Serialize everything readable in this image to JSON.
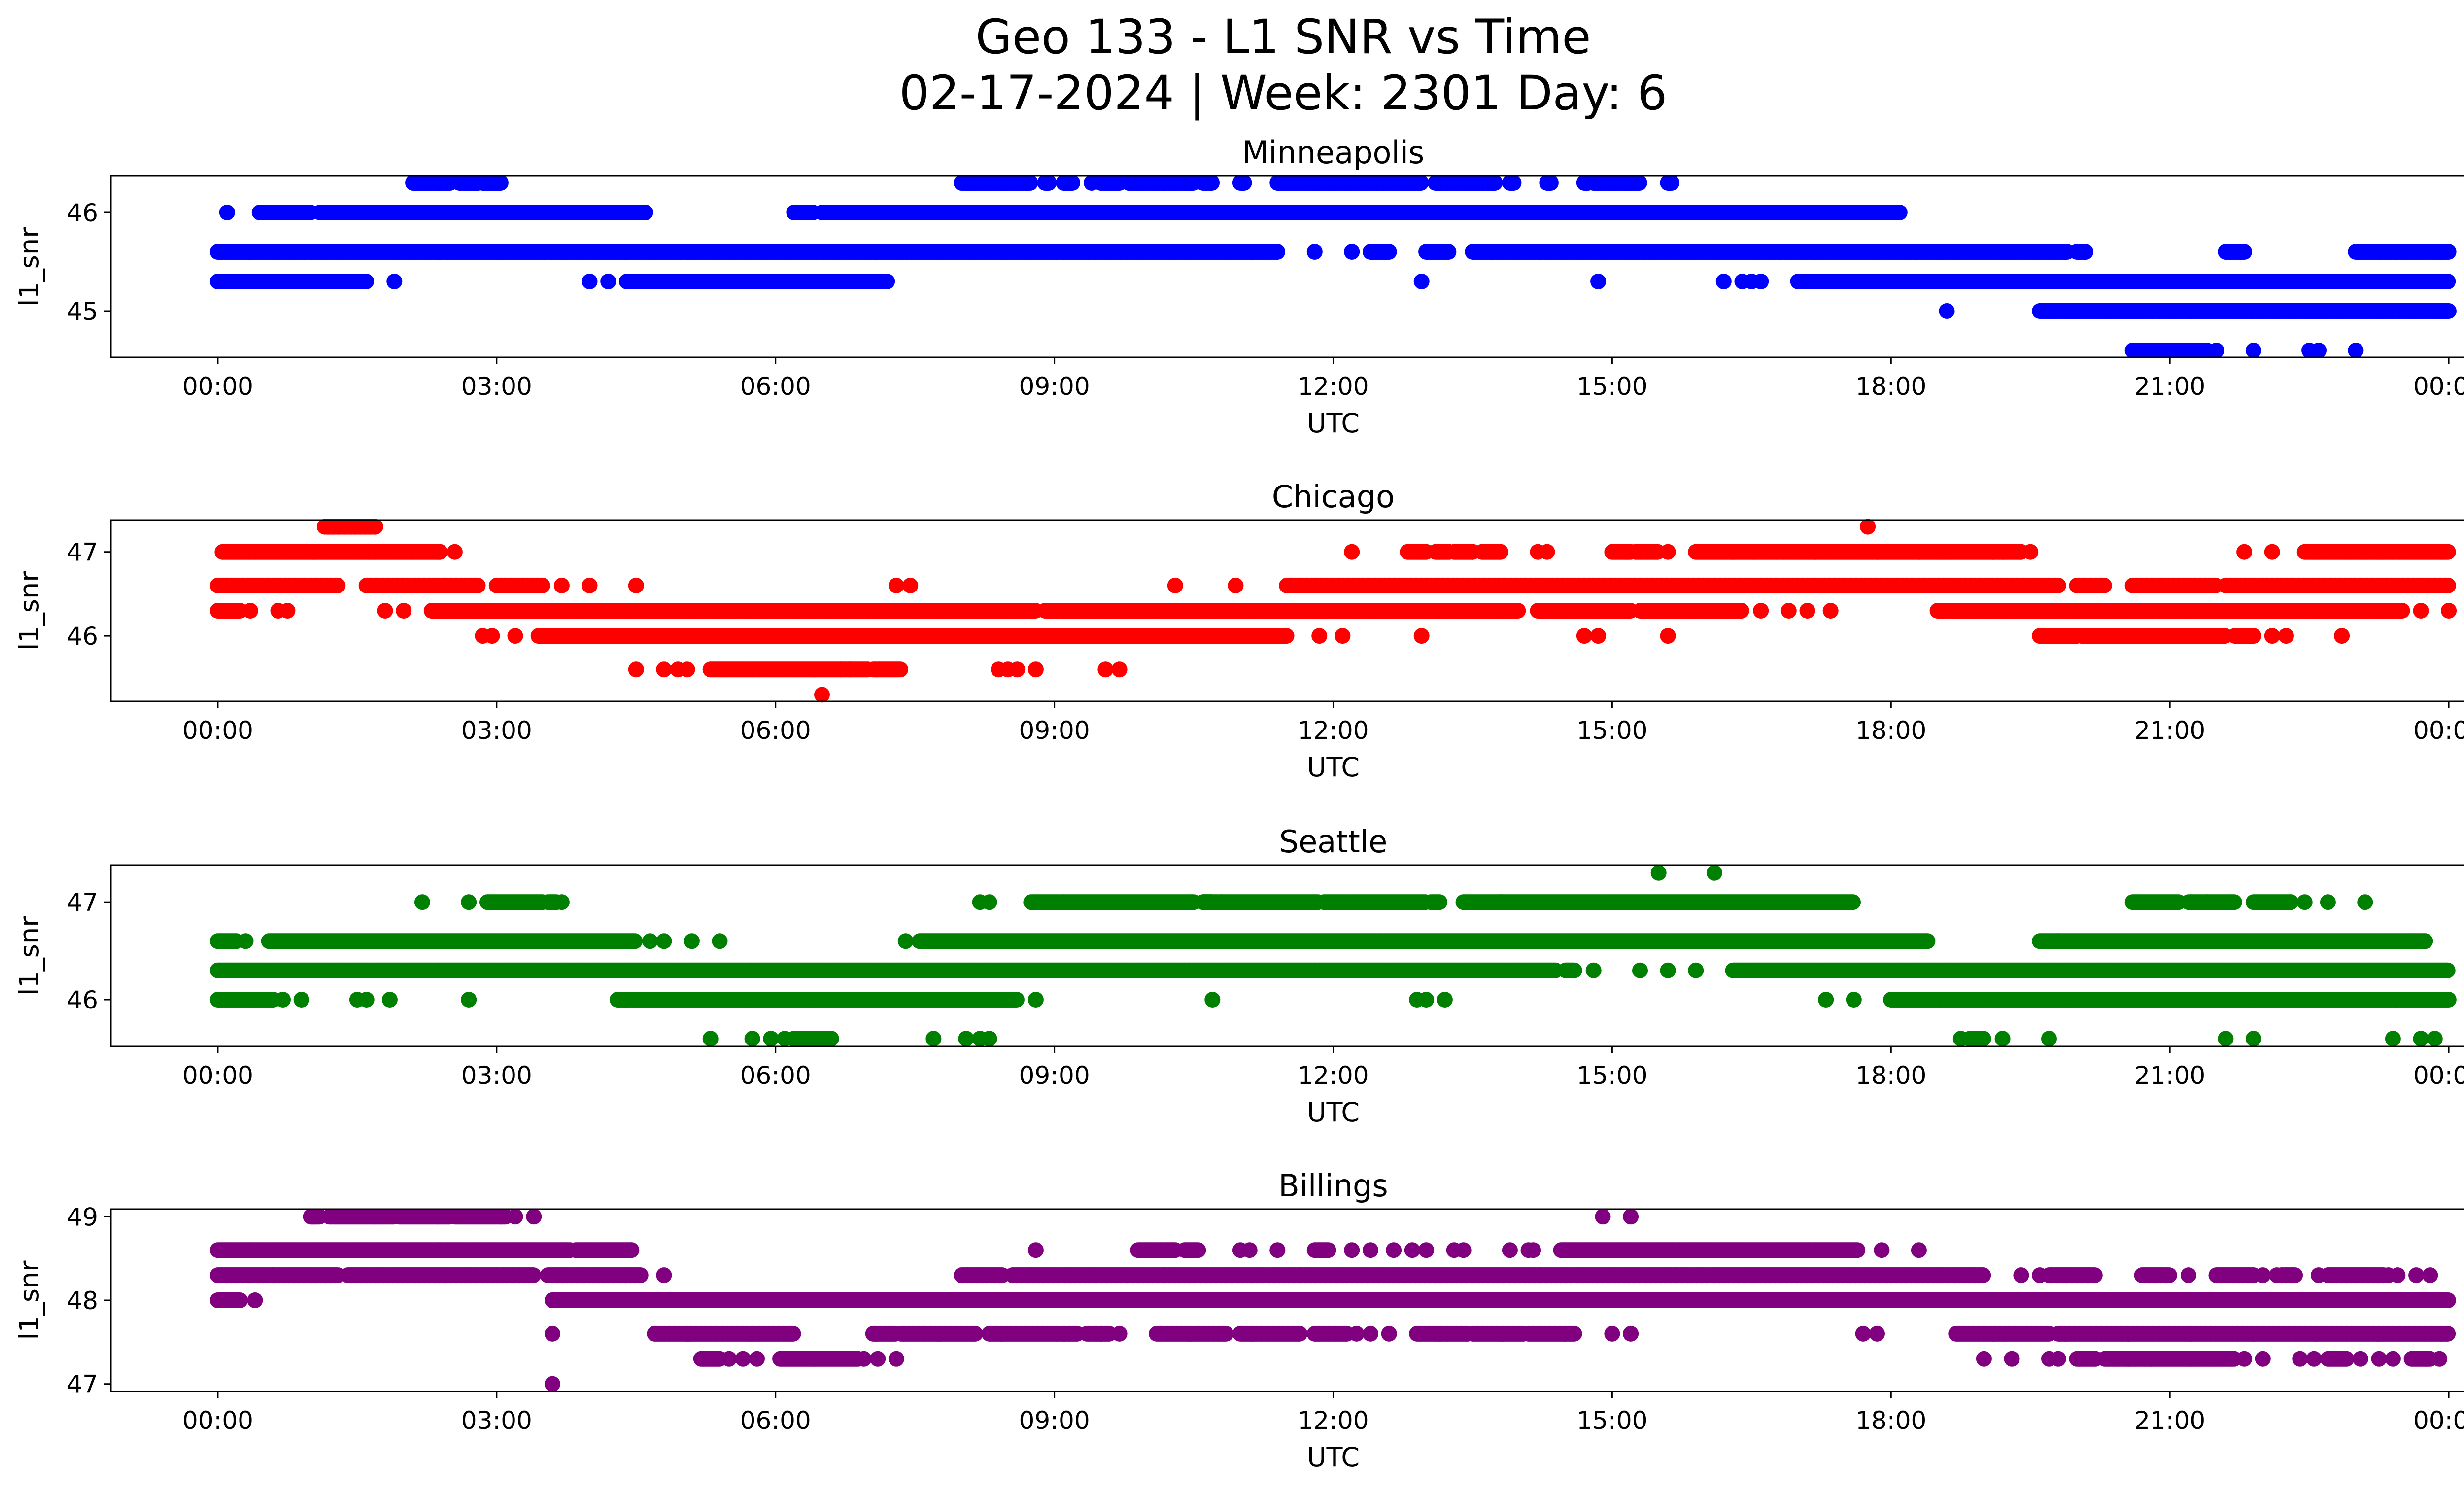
{
  "figure": {
    "title_line1": "Geo 133 - L1 SNR vs Time",
    "title_line2": "02-17-2024 | Week: 2301 Day: 6"
  },
  "chart_data": [
    {
      "type": "scatter",
      "title": "Minneapolis",
      "xlabel": "UTC",
      "ylabel": "l1_snr",
      "color": "#0000ff",
      "xlim": [
        -1.15,
        25.15
      ],
      "ylim": [
        44.53,
        46.37
      ],
      "x_ticks": [
        "00:00",
        "03:00",
        "06:00",
        "09:00",
        "12:00",
        "15:00",
        "18:00",
        "21:00",
        "00:00"
      ],
      "y_ticks": [
        45,
        46
      ],
      "series": [
        {
          "y": 46.3,
          "segments": [
            [
              2.1,
              2.5
            ],
            [
              2.6,
              2.8
            ],
            [
              2.85,
              2.95
            ],
            [
              2.95,
              3.05
            ],
            [
              8.0,
              8.1
            ],
            [
              8.1,
              8.7
            ],
            [
              8.7,
              8.75
            ],
            [
              8.9,
              8.95
            ],
            [
              9.1,
              9.2
            ],
            [
              9.5,
              9.7
            ],
            [
              9.8,
              10.5
            ],
            [
              10.6,
              10.7
            ],
            [
              11.0,
              11.05
            ],
            [
              11.4,
              12.95
            ],
            [
              13.1,
              13.75
            ],
            [
              13.9,
              13.95
            ],
            [
              14.3,
              14.35
            ],
            [
              14.7,
              14.75
            ],
            [
              14.8,
              15.3
            ],
            [
              15.6,
              15.65
            ]
          ],
          "points": [
            2.8,
            3.0,
            9.4,
            12.0
          ]
        },
        {
          "y": 46.0,
          "segments": [
            [
              0.45,
              1.0
            ],
            [
              1.1,
              4.6
            ],
            [
              6.2,
              6.4
            ],
            [
              6.5,
              6.7
            ],
            [
              6.7,
              17.8
            ],
            [
              17.8,
              18.1
            ]
          ],
          "points": [
            0.1,
            0.8,
            4.6,
            6.4
          ]
        },
        {
          "y": 45.6,
          "segments": [
            [
              0.0,
              11.4
            ],
            [
              12.4,
              12.6
            ],
            [
              13.0,
              13.25
            ],
            [
              13.5,
              19.6
            ],
            [
              19.6,
              19.9
            ],
            [
              20.0,
              20.1
            ],
            [
              21.6,
              21.8
            ],
            [
              23.0,
              24.0
            ]
          ],
          "points": [
            11.8,
            12.2,
            13.7
          ]
        },
        {
          "y": 45.3,
          "segments": [
            [
              0.0,
              1.6
            ],
            [
              4.4,
              4.6
            ],
            [
              4.6,
              7.0
            ],
            [
              7.0,
              7.15
            ],
            [
              17.0,
              17.3
            ],
            [
              17.3,
              24.0
            ]
          ],
          "points": [
            1.9,
            4.0,
            4.2,
            7.2,
            12.95,
            14.85,
            16.2,
            16.4,
            16.5,
            16.6
          ]
        },
        {
          "y": 45.0,
          "segments": [
            [
              19.6,
              20.0
            ],
            [
              20.0,
              23.6
            ],
            [
              23.6,
              24.0
            ]
          ],
          "points": [
            18.6
          ]
        },
        {
          "y": 44.6,
          "segments": [
            [
              20.6,
              20.85
            ],
            [
              20.85,
              21.2
            ],
            [
              21.2,
              21.4
            ]
          ],
          "points": [
            21.5,
            21.9,
            22.5,
            22.6,
            23.0
          ]
        }
      ]
    },
    {
      "type": "scatter",
      "title": "Chicago",
      "xlabel": "UTC",
      "ylabel": "l1_snr",
      "color": "#ff0000",
      "xlim": [
        -1.15,
        25.15
      ],
      "ylim": [
        45.22,
        47.38
      ],
      "x_ticks": [
        "00:00",
        "03:00",
        "06:00",
        "09:00",
        "12:00",
        "15:00",
        "18:00",
        "21:00",
        "00:00"
      ],
      "y_ticks": [
        46,
        47
      ],
      "series": [
        {
          "y": 47.3,
          "segments": [
            [
              1.15,
              1.7
            ]
          ],
          "points": [
            17.75
          ]
        },
        {
          "y": 47.0,
          "segments": [
            [
              0.05,
              2.4
            ],
            [
              12.8,
              13.0
            ],
            [
              13.1,
              13.25
            ],
            [
              13.3,
              13.5
            ],
            [
              13.6,
              13.8
            ],
            [
              15.0,
              15.2
            ],
            [
              15.25,
              15.5
            ],
            [
              15.9,
              16.3
            ],
            [
              16.3,
              17.8
            ],
            [
              17.8,
              19.4
            ],
            [
              22.45,
              24.0
            ]
          ],
          "points": [
            2.55,
            12.2,
            13.5,
            14.2,
            14.3,
            15.6,
            18.3,
            19.1,
            19.4,
            19.5,
            21.8,
            22.1
          ]
        },
        {
          "y": 46.6,
          "segments": [
            [
              0.0,
              1.3
            ],
            [
              1.6,
              2.8
            ],
            [
              3.0,
              3.5
            ],
            [
              11.5,
              19.8
            ],
            [
              20.0,
              20.3
            ],
            [
              20.6,
              21.5
            ],
            [
              21.6,
              24.0
            ]
          ],
          "points": [
            3.7,
            4.0,
            4.5,
            7.3,
            7.45,
            10.3,
            10.95,
            20.9
          ]
        },
        {
          "y": 46.3,
          "segments": [
            [
              0.0,
              0.25
            ],
            [
              2.3,
              5.7
            ],
            [
              5.7,
              7.6
            ],
            [
              7.6,
              8.8
            ],
            [
              8.9,
              11.5
            ],
            [
              11.5,
              14.0
            ],
            [
              14.2,
              15.2
            ],
            [
              15.3,
              16.4
            ],
            [
              18.5,
              20.0
            ],
            [
              20.0,
              22.9
            ],
            [
              22.9,
              23.5
            ]
          ],
          "points": [
            0.35,
            0.65,
            0.75,
            1.8,
            2.0,
            5.9,
            6.2,
            6.35,
            6.6,
            6.75,
            7.0,
            16.6,
            16.9,
            17.1,
            17.35,
            23.7,
            24.0
          ]
        },
        {
          "y": 46.0,
          "segments": [
            [
              3.45,
              11.5
            ],
            [
              19.6,
              20.0
            ],
            [
              20.05,
              21.6
            ],
            [
              21.7,
              21.9
            ]
          ],
          "points": [
            2.85,
            2.95,
            3.2,
            11.85,
            12.1,
            12.95,
            14.7,
            14.85,
            15.6,
            22.1,
            22.25,
            22.85
          ]
        },
        {
          "y": 45.6,
          "segments": [
            [
              5.3,
              6.7
            ],
            [
              6.7,
              7.0
            ],
            [
              7.05,
              7.35
            ]
          ],
          "points": [
            4.5,
            4.8,
            4.95,
            5.05,
            6.8,
            8.4,
            8.5,
            8.6,
            8.8,
            9.55,
            9.7
          ]
        },
        {
          "y": 45.3,
          "segments": [],
          "points": [
            6.5
          ]
        }
      ]
    },
    {
      "type": "scatter",
      "title": "Seattle",
      "xlabel": "UTC",
      "ylabel": "l1_snr",
      "color": "#008000",
      "xlim": [
        -1.15,
        25.15
      ],
      "ylim": [
        45.52,
        47.38
      ],
      "x_ticks": [
        "00:00",
        "03:00",
        "06:00",
        "09:00",
        "12:00",
        "15:00",
        "18:00",
        "21:00",
        "00:00"
      ],
      "y_ticks": [
        46,
        47
      ],
      "series": [
        {
          "y": 47.3,
          "segments": [],
          "points": [
            15.5,
            16.1
          ]
        },
        {
          "y": 47.0,
          "segments": [
            [
              2.9,
              3.2
            ],
            [
              3.2,
              3.5
            ],
            [
              3.55,
              3.65
            ],
            [
              8.75,
              9.1
            ],
            [
              9.1,
              10.5
            ],
            [
              10.6,
              10.7
            ],
            [
              10.6,
              11.85
            ],
            [
              11.9,
              13.0
            ],
            [
              13.05,
              13.15
            ],
            [
              13.4,
              13.8
            ],
            [
              13.8,
              17.6
            ],
            [
              20.6,
              21.1
            ],
            [
              21.2,
              21.4
            ],
            [
              21.4,
              21.7
            ],
            [
              21.9,
              22.3
            ]
          ],
          "points": [
            2.2,
            2.7,
            3.7,
            8.2,
            8.3,
            10.8,
            22.3,
            22.45,
            22.7,
            23.1
          ]
        },
        {
          "y": 46.6,
          "segments": [
            [
              0.0,
              0.2
            ],
            [
              0.55,
              4.5
            ],
            [
              7.55,
              7.6
            ],
            [
              7.6,
              18.3
            ],
            [
              18.3,
              18.4
            ],
            [
              19.6,
              19.8
            ],
            [
              19.8,
              23.6
            ],
            [
              23.6,
              23.75
            ]
          ],
          "points": [
            0.3,
            4.65,
            4.8,
            5.1,
            5.4,
            7.4
          ]
        },
        {
          "y": 46.3,
          "segments": [
            [
              0.0,
              14.4
            ],
            [
              14.5,
              14.6
            ],
            [
              16.3,
              24.0
            ]
          ],
          "points": [
            14.8,
            15.3,
            15.6,
            15.9
          ]
        },
        {
          "y": 46.0,
          "segments": [
            [
              0.0,
              0.6
            ],
            [
              4.3,
              4.6
            ],
            [
              4.6,
              8.5
            ],
            [
              8.5,
              8.6
            ],
            [
              18.0,
              24.0
            ]
          ],
          "points": [
            0.7,
            0.9,
            1.5,
            1.6,
            1.85,
            2.7,
            8.5,
            8.8,
            10.7,
            12.9,
            13.0,
            13.2,
            17.3,
            17.6
          ]
        },
        {
          "y": 45.6,
          "segments": [
            [
              6.2,
              6.6
            ],
            [
              18.9,
              19.0
            ]
          ],
          "points": [
            5.3,
            5.75,
            5.95,
            6.1,
            7.7,
            8.05,
            8.2,
            8.3,
            18.75,
            18.85,
            19.2,
            19.7,
            21.6,
            21.9,
            23.4,
            23.7,
            23.85
          ]
        }
      ]
    },
    {
      "type": "scatter",
      "title": "Billings",
      "xlabel": "UTC",
      "ylabel": "l1_snr",
      "color": "#800080",
      "xlim": [
        -1.15,
        25.15
      ],
      "ylim": [
        46.91,
        49.09
      ],
      "x_ticks": [
        "00:00",
        "03:00",
        "06:00",
        "09:00",
        "12:00",
        "15:00",
        "18:00",
        "21:00",
        "00:00"
      ],
      "y_ticks": [
        47,
        48,
        49
      ],
      "series": [
        {
          "y": 49.0,
          "segments": [
            [
              1.0,
              1.1
            ],
            [
              1.2,
              1.9
            ],
            [
              1.95,
              2.5
            ],
            [
              2.55,
              3.1
            ]
          ],
          "points": [
            3.2,
            3.4,
            14.9,
            15.2
          ]
        },
        {
          "y": 48.6,
          "segments": [
            [
              0.0,
              3.8
            ],
            [
              3.85,
              4.45
            ],
            [
              9.9,
              10.3
            ],
            [
              10.4,
              10.55
            ],
            [
              11.8,
              11.95
            ],
            [
              14.45,
              17.2
            ],
            [
              17.2,
              17.65
            ]
          ],
          "points": [
            4.45,
            8.8,
            11.0,
            11.1,
            11.4,
            12.2,
            12.4,
            12.65,
            12.85,
            13.0,
            13.3,
            13.4,
            13.9,
            14.1,
            14.15,
            17.9,
            18.3
          ]
        },
        {
          "y": 48.3,
          "segments": [
            [
              0.0,
              0.6
            ],
            [
              0.6,
              1.3
            ],
            [
              1.4,
              3.4
            ],
            [
              3.55,
              4.55
            ],
            [
              8.0,
              8.45
            ],
            [
              8.55,
              8.75
            ],
            [
              8.75,
              19.0
            ],
            [
              19.7,
              20.2
            ],
            [
              20.7,
              21.0
            ],
            [
              21.5,
              21.9
            ],
            [
              22.2,
              22.35
            ],
            [
              22.7,
              23.3
            ]
          ],
          "points": [
            4.8,
            19.4,
            19.6,
            21.2,
            22.0,
            22.15,
            22.6,
            23.35,
            23.45,
            23.65,
            23.8
          ]
        },
        {
          "y": 48.0,
          "segments": [
            [
              0.0,
              0.25
            ],
            [
              3.6,
              3.85
            ],
            [
              3.85,
              4.6
            ],
            [
              4.6,
              7.4
            ],
            [
              7.4,
              17.0
            ],
            [
              17.0,
              18.7
            ],
            [
              18.7,
              24.0
            ]
          ],
          "points": [
            0.4,
            3.6,
            3.8
          ]
        },
        {
          "y": 47.6,
          "segments": [
            [
              4.7,
              6.2
            ],
            [
              7.05,
              7.3
            ],
            [
              7.35,
              8.15
            ],
            [
              8.3,
              9.25
            ],
            [
              9.35,
              9.6
            ],
            [
              10.1,
              10.85
            ],
            [
              11.0,
              11.65
            ],
            [
              11.8,
              12.15
            ],
            [
              12.9,
              13.45
            ],
            [
              13.5,
              14.05
            ],
            [
              14.1,
              14.6
            ],
            [
              18.7,
              19.1
            ],
            [
              19.1,
              19.7
            ],
            [
              19.8,
              24.0
            ]
          ],
          "points": [
            3.6,
            9.5,
            9.7,
            12.25,
            12.4,
            12.6,
            15.0,
            15.2,
            17.7,
            17.85
          ]
        },
        {
          "y": 47.3,
          "segments": [
            [
              5.2,
              5.4
            ],
            [
              6.05,
              6.9
            ],
            [
              20.0,
              20.2
            ],
            [
              20.3,
              20.8
            ],
            [
              20.8,
              21.7
            ],
            [
              22.7,
              22.9
            ],
            [
              23.6,
              23.8
            ]
          ],
          "points": [
            5.5,
            5.65,
            5.8,
            6.95,
            7.1,
            7.3,
            19.0,
            19.3,
            19.7,
            19.8,
            21.8,
            22.0,
            22.4,
            22.55,
            23.05,
            23.25,
            23.4,
            23.9
          ]
        },
        {
          "y": 47.0,
          "segments": [],
          "points": [
            3.6
          ]
        }
      ]
    }
  ]
}
